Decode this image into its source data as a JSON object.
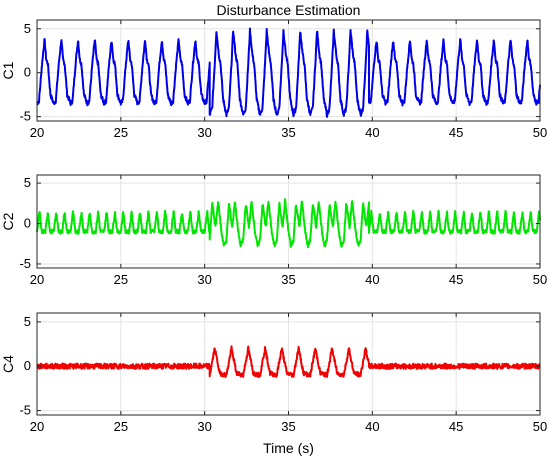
{
  "chart_data": [
    {
      "type": "line",
      "title": "Disturbance Estimation",
      "xlabel": "",
      "ylabel": "C1",
      "xlim": [
        20,
        50
      ],
      "ylim": [
        -5.5,
        6
      ],
      "xticks": [
        20,
        25,
        30,
        35,
        40,
        45,
        50
      ],
      "yticks": [
        -5,
        0,
        5
      ],
      "grid": true,
      "series": [
        {
          "color": "#0000e6",
          "period": 1.0,
          "segments": [
            {
              "x_range": [
                20,
                30.3
              ],
              "cycle_x": [
                0,
                0.12,
                0.3,
                0.45,
                0.55,
                0.65,
                0.8,
                1.0
              ],
              "cycle_y": [
                -3.5,
                -3.2,
                1,
                3.8,
                1.5,
                1,
                -2.5,
                -3.5
              ]
            },
            {
              "x_range": [
                30.3,
                39.8
              ],
              "cycle_x": [
                0,
                0.15,
                0.3,
                0.4,
                0.55,
                0.65,
                0.8,
                1.0
              ],
              "cycle_y": [
                -4.8,
                -4,
                1,
                4.8,
                2,
                1,
                -3,
                -4.8
              ]
            },
            {
              "x_range": [
                39.8,
                50
              ],
              "cycle_x": [
                0,
                0.12,
                0.3,
                0.45,
                0.55,
                0.65,
                0.8,
                1.0
              ],
              "cycle_y": [
                -3.5,
                -3.2,
                1,
                3.8,
                1.5,
                1,
                -2.5,
                -3.5
              ]
            }
          ]
        }
      ]
    },
    {
      "type": "line",
      "title": "",
      "xlabel": "",
      "ylabel": "C2",
      "xlim": [
        20,
        50
      ],
      "ylim": [
        -5.5,
        6
      ],
      "xticks": [
        20,
        25,
        30,
        35,
        40,
        45,
        50
      ],
      "yticks": [
        -5,
        0,
        5
      ],
      "grid": true,
      "series": [
        {
          "color": "#00e600",
          "segments": [
            {
              "x_range": [
                20,
                30.3
              ],
              "period": 0.5,
              "cycle_x": [
                0,
                0.3,
                0.55,
                1.0
              ],
              "cycle_y": [
                -1,
                1.5,
                -1,
                -1
              ]
            },
            {
              "x_range": [
                30.3,
                39.8
              ],
              "period": 1.0,
              "cycle_x": [
                0,
                0.15,
                0.35,
                0.5,
                0.7,
                0.85,
                1.0
              ],
              "cycle_y": [
                -2,
                2.5,
                -0.5,
                2.8,
                -1,
                -2.8,
                -2
              ]
            },
            {
              "x_range": [
                39.8,
                50
              ],
              "period": 0.5,
              "cycle_x": [
                0,
                0.3,
                0.55,
                1.0
              ],
              "cycle_y": [
                -1,
                1.5,
                -1,
                -1
              ]
            }
          ]
        }
      ]
    },
    {
      "type": "line",
      "title": "",
      "xlabel": "Time (s)",
      "ylabel": "C4",
      "xlim": [
        20,
        50
      ],
      "ylim": [
        -5.5,
        6
      ],
      "xticks": [
        20,
        25,
        30,
        35,
        40,
        45,
        50
      ],
      "yticks": [
        -5,
        0,
        5
      ],
      "grid": true,
      "series": [
        {
          "color": "#f00000",
          "segments": [
            {
              "x_range": [
                20,
                30.3
              ],
              "flat": 0,
              "noise": 0.3
            },
            {
              "x_range": [
                30.3,
                39.8
              ],
              "period": 1.0,
              "cycle_x": [
                0,
                0.3,
                0.6,
                1.0
              ],
              "cycle_y": [
                -1,
                2,
                -0.8,
                -1
              ]
            },
            {
              "x_range": [
                39.8,
                50
              ],
              "flat": 0,
              "noise": 0.3
            }
          ]
        }
      ]
    }
  ]
}
